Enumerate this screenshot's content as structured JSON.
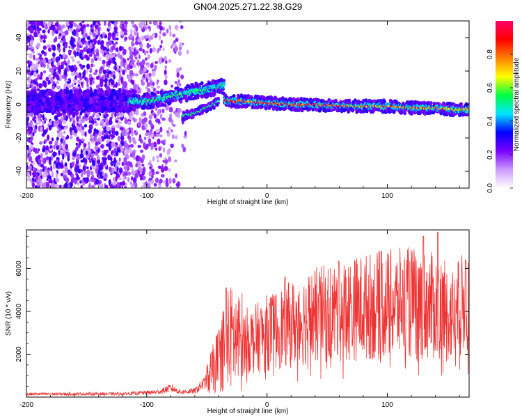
{
  "figure": {
    "title": "GN04.2025.271.22.38.G29"
  },
  "chart_data": [
    {
      "type": "heatmap",
      "xlabel": "Height of straight line (km)",
      "ylabel": "Frequency (Hz)",
      "xlim": [
        -200,
        168
      ],
      "ylim": [
        -50,
        50
      ],
      "x_ticks": [
        -200,
        -100,
        0,
        100
      ],
      "y_ticks": [
        -40,
        -20,
        0,
        20,
        40
      ],
      "colorbar": {
        "label": "Normalized spectral amplitude",
        "range": [
          0.0,
          1.0
        ],
        "ticks": [
          0.0,
          0.2,
          0.4,
          0.6,
          0.8
        ],
        "tick_labels": [
          "0.0",
          "0.2",
          "0.4",
          "0.6",
          "0.8"
        ],
        "colormap": [
          "#ffffff",
          "#cc99ff",
          "#7a00ff",
          "#0000ff",
          "#00e5ff",
          "#00ff40",
          "#ffff00",
          "#ff8000",
          "#ff0000",
          "#ff0066"
        ]
      },
      "ridge": [
        {
          "height_km": -115,
          "frequency_hz": 2
        },
        {
          "height_km": -100,
          "frequency_hz": 2
        },
        {
          "height_km": -90,
          "frequency_hz": 3
        },
        {
          "height_km": -80,
          "frequency_hz": 5
        },
        {
          "height_km": -70,
          "frequency_hz": 6
        },
        {
          "height_km": -60,
          "frequency_hz": 8
        },
        {
          "height_km": -50,
          "frequency_hz": 9
        },
        {
          "height_km": -40,
          "frequency_hz": 10
        },
        {
          "height_km": -36,
          "frequency_hz": 12
        },
        {
          "height_km": -35,
          "frequency_hz": 2
        },
        {
          "height_km": -20,
          "frequency_hz": 2
        },
        {
          "height_km": 0,
          "frequency_hz": 1
        },
        {
          "height_km": 20,
          "frequency_hz": 0
        },
        {
          "height_km": 40,
          "frequency_hz": 0
        },
        {
          "height_km": 60,
          "frequency_hz": -1
        },
        {
          "height_km": 80,
          "frequency_hz": -1
        },
        {
          "height_km": 100,
          "frequency_hz": -1
        },
        {
          "height_km": 120,
          "frequency_hz": -2
        },
        {
          "height_km": 140,
          "frequency_hz": -2
        },
        {
          "height_km": 155,
          "frequency_hz": -3
        },
        {
          "height_km": 168,
          "frequency_hz": -3
        }
      ],
      "branch": [
        {
          "height_km": -70,
          "frequency_hz": -7
        },
        {
          "height_km": -60,
          "frequency_hz": -5
        },
        {
          "height_km": -50,
          "frequency_hz": -2
        },
        {
          "height_km": -40,
          "frequency_hz": 2
        }
      ]
    },
    {
      "type": "line",
      "xlabel": "Height of straight line (km)",
      "ylabel": "SNR (10 * v/v)",
      "xlim": [
        -200,
        168
      ],
      "ylim": [
        0,
        7800
      ],
      "x_ticks": [
        -200,
        -100,
        0,
        100
      ],
      "y_ticks": [
        2000,
        4000,
        6000
      ],
      "series": [
        {
          "color": "#ee3333",
          "envelope": [
            {
              "x": -200,
              "y": 150
            },
            {
              "x": -120,
              "y": 160
            },
            {
              "x": -90,
              "y": 250
            },
            {
              "x": -80,
              "y": 450
            },
            {
              "x": -72,
              "y": 250
            },
            {
              "x": -60,
              "y": 300
            },
            {
              "x": -50,
              "y": 800
            },
            {
              "x": -40,
              "y": 1800
            },
            {
              "x": -32,
              "y": 2800
            },
            {
              "x": -20,
              "y": 2600
            },
            {
              "x": -10,
              "y": 2700
            },
            {
              "x": 0,
              "y": 3000
            },
            {
              "x": 20,
              "y": 3400
            },
            {
              "x": 40,
              "y": 3800
            },
            {
              "x": 60,
              "y": 4000
            },
            {
              "x": 80,
              "y": 4200
            },
            {
              "x": 100,
              "y": 4300
            },
            {
              "x": 120,
              "y": 4400
            },
            {
              "x": 140,
              "y": 4200
            },
            {
              "x": 155,
              "y": 3800
            },
            {
              "x": 168,
              "y": 4500
            }
          ],
          "peak_values": [
            {
              "x": -34,
              "y": 5100
            },
            {
              "x": 15,
              "y": 5600
            },
            {
              "x": 60,
              "y": 6300
            },
            {
              "x": 95,
              "y": 6800
            },
            {
              "x": 130,
              "y": 7500
            },
            {
              "x": 142,
              "y": 7700
            },
            {
              "x": 165,
              "y": 6400
            }
          ]
        }
      ]
    }
  ]
}
